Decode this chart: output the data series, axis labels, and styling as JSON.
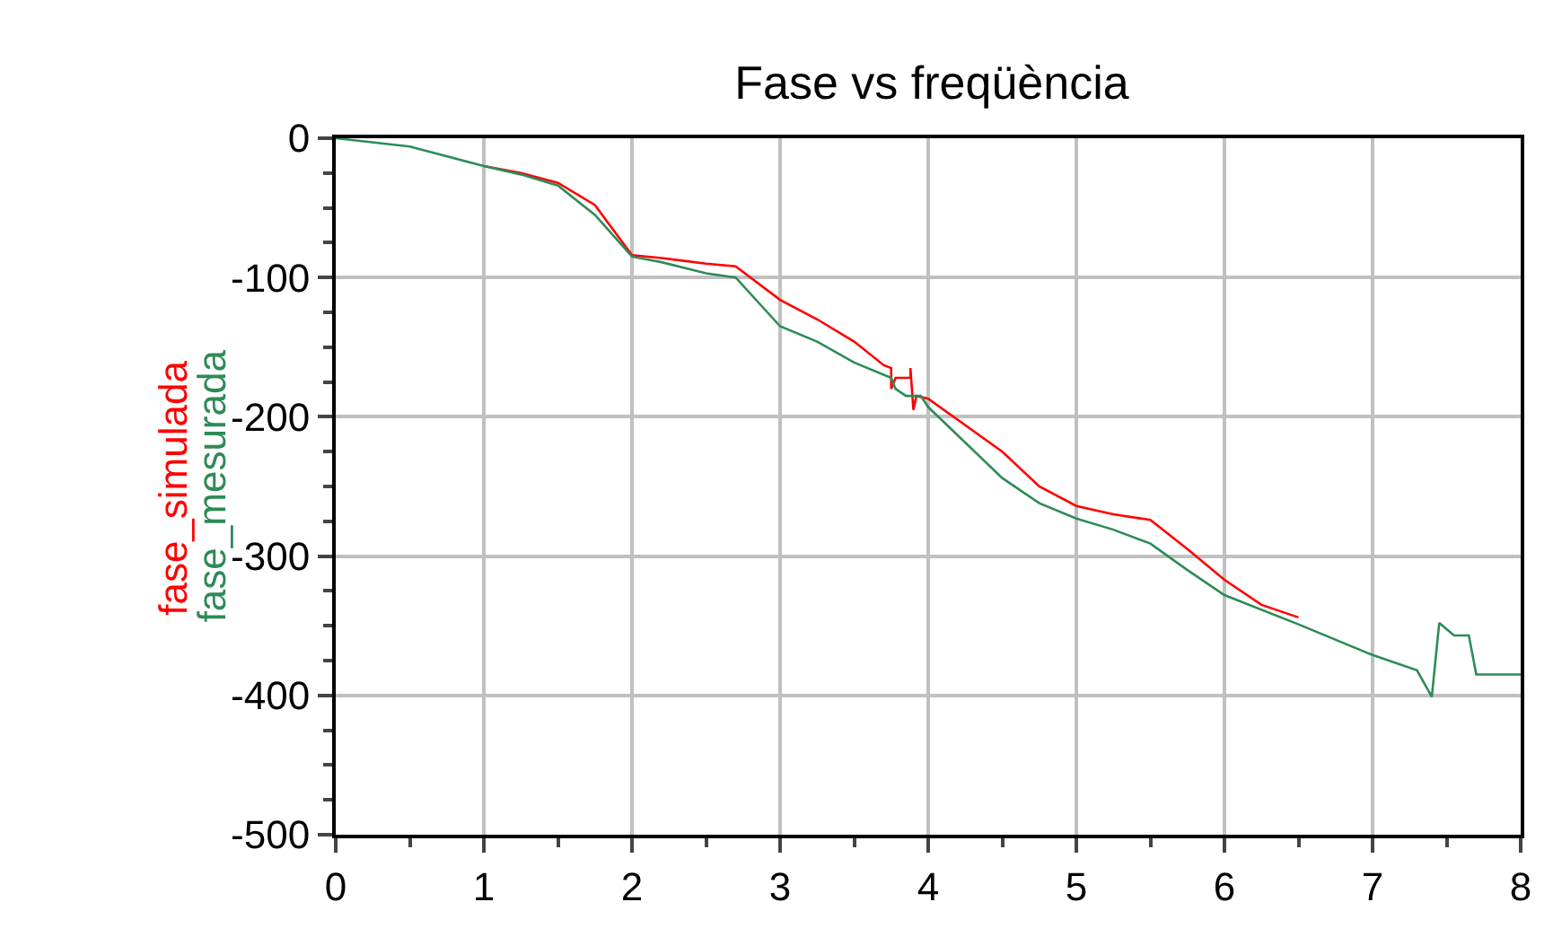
{
  "chart_data": {
    "type": "line",
    "title": "Fase vs freqüència",
    "xlim": [
      0,
      8
    ],
    "xticks": [
      0,
      1,
      2,
      3,
      4,
      5,
      6,
      7,
      8
    ],
    "ylim": [
      -500,
      0
    ],
    "yticks": [
      -500,
      -400,
      -300,
      -200,
      -100,
      0
    ],
    "grid": true,
    "legend": false,
    "marker": "none",
    "line_style": "solid",
    "series": [
      {
        "name": "fase_simulada",
        "color": "#ff0000",
        "x": [
          1,
          1.25,
          1.5,
          1.75,
          2,
          2.2,
          2.5,
          2.7,
          3,
          3.25,
          3.5,
          3.7,
          3.75,
          3.75,
          3.78,
          3.88,
          3.88,
          3.9,
          3.92,
          4,
          4.5,
          4.75,
          5,
          5.25,
          5.5,
          5.75,
          6,
          6.25,
          6.5
        ],
        "values": [
          -20,
          -25,
          -32,
          -48,
          -84,
          -86,
          -90,
          -92,
          -116,
          -130,
          -146,
          -163,
          -165,
          -180,
          -172,
          -172,
          -165,
          -195,
          -185,
          -187,
          -225,
          -250,
          -264,
          -270,
          -274,
          -295,
          -317,
          -335,
          -344
        ]
      },
      {
        "name": "fase_mesurada",
        "color": "#2e8b57",
        "x": [
          0,
          0.5,
          1,
          1.25,
          1.5,
          1.75,
          2,
          2.2,
          2.5,
          2.7,
          3,
          3.25,
          3.5,
          3.75,
          3.78,
          3.85,
          3.95,
          4,
          4.5,
          4.75,
          5,
          5.25,
          5.5,
          5.75,
          6,
          6.5,
          7,
          7.3,
          7.4,
          7.45,
          7.55,
          7.65,
          7.7,
          8
        ],
        "values": [
          0,
          -6,
          -20,
          -26,
          -34,
          -55,
          -85,
          -89,
          -97,
          -100,
          -135,
          -146,
          -161,
          -172,
          -180,
          -185,
          -185,
          -193,
          -244,
          -262,
          -273,
          -281,
          -291,
          -310,
          -328,
          -349,
          -371,
          -382,
          -401,
          -348,
          -357,
          -357,
          -385,
          -385
        ]
      }
    ]
  }
}
